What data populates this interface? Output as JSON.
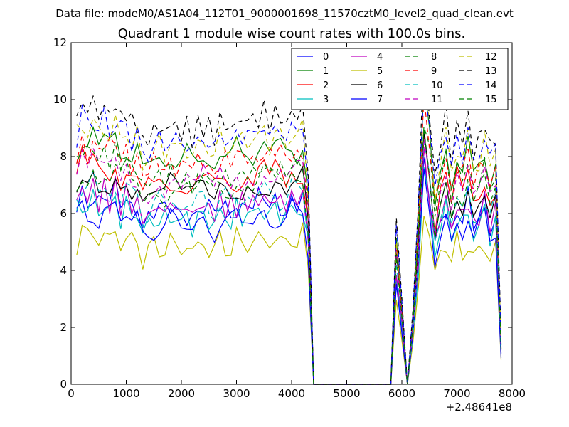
{
  "figure": {
    "suptitle": "Data file: modeM0/AS1A04_112T01_9000001698_11570cztM0_level2_quad_clean.evt"
  },
  "chart_data": {
    "type": "line",
    "title": "Quadrant 1 module wise count rates with 100.0s bins.",
    "xlabel": "",
    "ylabel": "",
    "x_offset_label": "+2.48641e8",
    "xlim": [
      0,
      8000
    ],
    "ylim": [
      0,
      12
    ],
    "xticks": [
      0,
      1000,
      2000,
      3000,
      4000,
      5000,
      6000,
      7000,
      8000
    ],
    "xtick_labels": [
      "0",
      "1000",
      "2000",
      "3000",
      "4000",
      "5000",
      "6000",
      "7000",
      "8000"
    ],
    "yticks": [
      0,
      2,
      4,
      6,
      8,
      10,
      12
    ],
    "ytick_labels": [
      "0",
      "2",
      "4",
      "6",
      "8",
      "10",
      "12"
    ],
    "grid": false,
    "legend_position": "top-right",
    "legend_columns": 4,
    "x": [
      100,
      200,
      300,
      400,
      500,
      600,
      700,
      800,
      900,
      1000,
      1100,
      1200,
      1300,
      1400,
      1500,
      1600,
      1700,
      1800,
      1900,
      2000,
      2100,
      2200,
      2300,
      2400,
      2500,
      2600,
      2700,
      2800,
      2900,
      3000,
      3100,
      3200,
      3300,
      3400,
      3500,
      3600,
      3700,
      3800,
      3900,
      4000,
      4100,
      4200,
      4300,
      4400,
      4500,
      5800,
      5900,
      6000,
      6100,
      6200,
      6300,
      6400,
      6500,
      6600,
      6700,
      6800,
      6900,
      7000,
      7100,
      7200,
      7300,
      7400,
      7500,
      7600,
      7700,
      7800
    ],
    "profile": [
      1.0,
      1.07,
      1.03,
      1.08,
      1.01,
      1.05,
      1.02,
      1.06,
      1.0,
      1.04,
      0.98,
      1.0,
      0.9,
      0.93,
      0.96,
      0.97,
      0.95,
      0.99,
      0.97,
      0.95,
      0.97,
      0.94,
      0.96,
      0.99,
      0.96,
      0.94,
      1.0,
      0.98,
      0.96,
      1.0,
      0.98,
      1.02,
      0.99,
      1.01,
      1.03,
      0.99,
      1.02,
      1.01,
      0.98,
      1.03,
      1.01,
      1.04,
      0.8,
      0.0,
      0.0,
      0.0,
      0.62,
      0.33,
      0.0,
      0.28,
      0.7,
      1.22,
      1.05,
      0.76,
      0.93,
      1.02,
      0.85,
      0.98,
      0.92,
      1.02,
      0.86,
      0.93,
      1.0,
      0.88,
      0.96,
      0.17
    ],
    "series": [
      {
        "name": "0",
        "base": 6.3,
        "color": "#0000ff",
        "dash": false
      },
      {
        "name": "1",
        "base": 8.2,
        "color": "#008000",
        "dash": false
      },
      {
        "name": "2",
        "base": 7.3,
        "color": "#ff0000",
        "dash": false
      },
      {
        "name": "3",
        "base": 6.0,
        "color": "#00bfbf",
        "dash": false
      },
      {
        "name": "4",
        "base": 6.4,
        "color": "#bf00bf",
        "dash": false
      },
      {
        "name": "5",
        "base": 5.0,
        "color": "#bfbf00",
        "dash": false
      },
      {
        "name": "6",
        "base": 7.0,
        "color": "#000000",
        "dash": false
      },
      {
        "name": "7",
        "base": 5.8,
        "color": "#0000ff",
        "dash": false
      },
      {
        "name": "8",
        "base": 7.6,
        "color": "#008000",
        "dash": true
      },
      {
        "name": "9",
        "base": 8.0,
        "color": "#ff0000",
        "dash": true
      },
      {
        "name": "10",
        "base": 6.6,
        "color": "#00bfbf",
        "dash": true
      },
      {
        "name": "11",
        "base": 7.3,
        "color": "#bf00bf",
        "dash": true
      },
      {
        "name": "12",
        "base": 8.6,
        "color": "#bfbf00",
        "dash": true
      },
      {
        "name": "13",
        "base": 9.3,
        "color": "#000000",
        "dash": true
      },
      {
        "name": "14",
        "base": 8.8,
        "color": "#0000ff",
        "dash": true
      },
      {
        "name": "15",
        "base": 7.1,
        "color": "#008000",
        "dash": true
      }
    ]
  }
}
